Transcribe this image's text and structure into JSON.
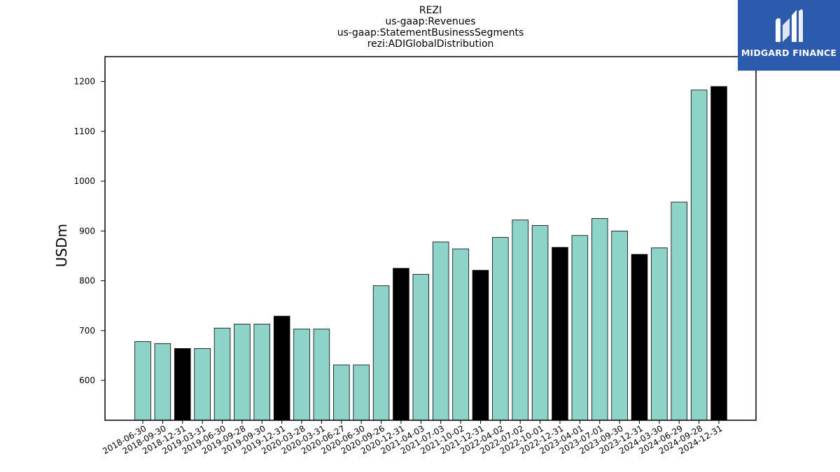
{
  "chart_data": {
    "type": "bar",
    "title": [
      "REZI",
      "us-gaap:Revenues",
      "us-gaap:StatementBusinessSegments",
      "rezi:ADIGlobalDistribution"
    ],
    "xlabel": "",
    "ylabel": "USDm",
    "ylim": [
      520,
      1250
    ],
    "yticks": [
      600,
      700,
      800,
      900,
      1000,
      1100,
      1200
    ],
    "grid": false,
    "categories": [
      "2018-06-30",
      "2018-09-30",
      "2018-12-31",
      "2019-03-31",
      "2019-06-30",
      "2019-09-28",
      "2019-09-30",
      "2019-12-31",
      "2020-03-28",
      "2020-03-31",
      "2020-06-27",
      "2020-06-30",
      "2020-09-26",
      "2020-12-31",
      "2021-04-03",
      "2021-07-03",
      "2021-10-02",
      "2021-12-31",
      "2022-04-02",
      "2022-07-02",
      "2022-10-01",
      "2022-12-31",
      "2023-04-01",
      "2023-07-01",
      "2023-09-30",
      "2023-12-31",
      "2024-03-30",
      "2024-06-29",
      "2024-09-28",
      "2024-12-31"
    ],
    "values": [
      678,
      674,
      664,
      664,
      705,
      713,
      713,
      729,
      703,
      703,
      631,
      631,
      790,
      825,
      813,
      878,
      864,
      821,
      887,
      922,
      911,
      867,
      891,
      925,
      900,
      853,
      866,
      958,
      1183,
      1190
    ],
    "bar_colors": [
      "#8dd3c7",
      "#8dd3c7",
      "#000000",
      "#8dd3c7",
      "#8dd3c7",
      "#8dd3c7",
      "#8dd3c7",
      "#000000",
      "#8dd3c7",
      "#8dd3c7",
      "#8dd3c7",
      "#8dd3c7",
      "#8dd3c7",
      "#000000",
      "#8dd3c7",
      "#8dd3c7",
      "#8dd3c7",
      "#000000",
      "#8dd3c7",
      "#8dd3c7",
      "#8dd3c7",
      "#000000",
      "#8dd3c7",
      "#8dd3c7",
      "#8dd3c7",
      "#000000",
      "#8dd3c7",
      "#8dd3c7",
      "#8dd3c7",
      "#000000"
    ],
    "accent_color": "#8dd3c7",
    "highlight_color": "#000000"
  },
  "logo": {
    "text": "MIDGARD FINANCE",
    "background_color": "#2c5aad"
  }
}
